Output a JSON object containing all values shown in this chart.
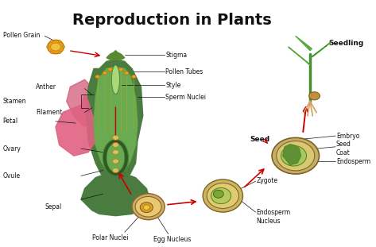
{
  "title": "Reproduction in Plants",
  "title_fontsize": 14,
  "title_fontweight": "bold",
  "labels": {
    "pollen_grain": "Pollen Grain",
    "stamen": "Stamen",
    "anther": "Anther",
    "filament": "Filament",
    "petal": "Petal",
    "ovary": "Ovary",
    "ovule": "Ovule",
    "sepal": "Sepal",
    "stigma": "Stigma",
    "pollen_tubes": "Pollen Tubes",
    "style": "Style",
    "sperm_nuclei": "Sperm Nuclei",
    "polar_nuclei": "Polar Nuclei",
    "egg_nucleus": "Egg Nucleus",
    "zygote": "Zygote",
    "endosperm_nucleus": "Endosperm\nNucleus",
    "embryo": "Embryo",
    "seed_coat": "Seed\nCoat",
    "endosperm": "Endosperm",
    "seed": "Seed",
    "seedling": "Seedling"
  },
  "colors": {
    "background_color": "#ffffff",
    "flower_outer": "#4a7c3f",
    "flower_inner": "#6aaa50",
    "flower_light": "#a8d878",
    "ovary_dark": "#2d5a1e",
    "ovary_inner": "#3d7a2e",
    "petal_color": "#e06080",
    "pollen_color": "#e8a020",
    "pollen_outline": "#c07800",
    "stamen_color": "#8aaa40",
    "stigma_color": "#5a8a30",
    "ovule_outer": "#c8b060",
    "ovule_inner": "#e8c870",
    "ovule_center": "#a06030",
    "seed_outer": "#b8b060",
    "seed_mid": "#d8c870",
    "seed_inner": "#9aba60",
    "seed_embryo": "#5a8a30",
    "seedling_stem": "#4a8a30",
    "seedling_leaf": "#5aaa40",
    "seedling_seed": "#c09040",
    "seedling_root": "#d0a060",
    "arrow_color": "#cc0000",
    "line_color": "#222222",
    "label_color": "#111111"
  }
}
